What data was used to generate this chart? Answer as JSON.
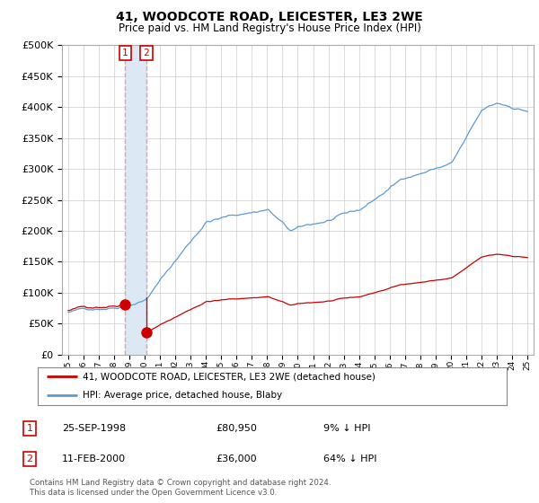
{
  "title": "41, WOODCOTE ROAD, LEICESTER, LE3 2WE",
  "subtitle": "Price paid vs. HM Land Registry's House Price Index (HPI)",
  "legend_line1": "41, WOODCOTE ROAD, LEICESTER, LE3 2WE (detached house)",
  "legend_line2": "HPI: Average price, detached house, Blaby",
  "table_rows": [
    [
      "1",
      "25-SEP-1998",
      "£80,950",
      "9% ↓ HPI"
    ],
    [
      "2",
      "11-FEB-2000",
      "£36,000",
      "64% ↓ HPI"
    ]
  ],
  "footnote": "Contains HM Land Registry data © Crown copyright and database right 2024.\nThis data is licensed under the Open Government Licence v3.0.",
  "hpi_color": "#5b9bd5",
  "price_color": "#cc0000",
  "shade_color": "#dce9f5",
  "t1_year": 1998.73,
  "t1_price": 80950,
  "t2_year": 2000.11,
  "t2_price": 36000,
  "ylim": [
    0,
    500000
  ],
  "yticks": [
    0,
    50000,
    100000,
    150000,
    200000,
    250000,
    300000,
    350000,
    400000,
    450000,
    500000
  ],
  "background_color": "#ffffff",
  "grid_color": "#cccccc"
}
